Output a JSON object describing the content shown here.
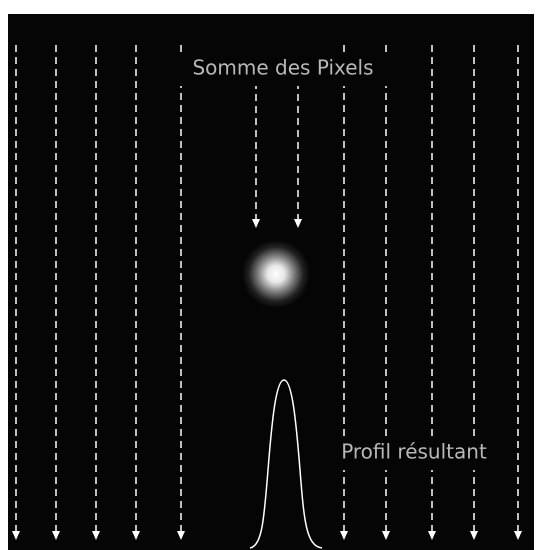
{
  "labels": {
    "title": "Somme des Pixels",
    "profile": "Profil résultant"
  }
}
